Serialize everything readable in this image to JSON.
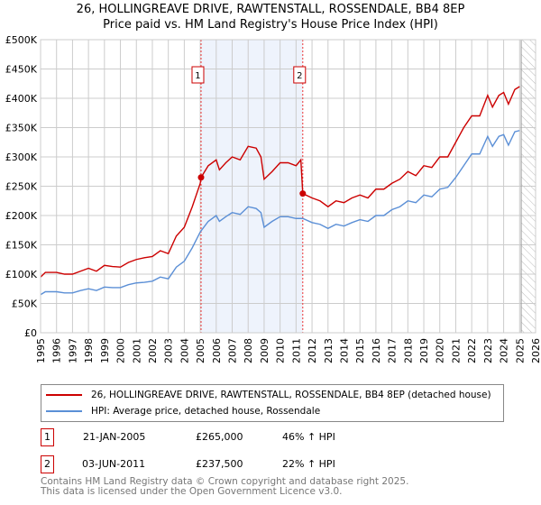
{
  "chart_data": {
    "type": "line",
    "title": "26, HOLLINGREAVE DRIVE, RAWTENSTALL, ROSSENDALE, BB4 8EP",
    "subtitle": "Price paid vs. HM Land Registry's House Price Index (HPI)",
    "xlim": [
      1995,
      2026
    ],
    "ylim": [
      0,
      500000
    ],
    "x_ticks": [
      "1995",
      "1996",
      "1997",
      "1998",
      "1999",
      "2000",
      "2001",
      "2002",
      "2003",
      "2004",
      "2005",
      "2006",
      "2007",
      "2008",
      "2009",
      "2010",
      "2011",
      "2012",
      "2013",
      "2014",
      "2015",
      "2016",
      "2017",
      "2018",
      "2019",
      "2020",
      "2021",
      "2022",
      "2023",
      "2024",
      "2025",
      "2026"
    ],
    "y_ticks": [
      {
        "v": 0,
        "label": "£0"
      },
      {
        "v": 50000,
        "label": "£50K"
      },
      {
        "v": 100000,
        "label": "£100K"
      },
      {
        "v": 150000,
        "label": "£150K"
      },
      {
        "v": 200000,
        "label": "£200K"
      },
      {
        "v": 250000,
        "label": "£250K"
      },
      {
        "v": 300000,
        "label": "£300K"
      },
      {
        "v": 350000,
        "label": "£350K"
      },
      {
        "v": 400000,
        "label": "£400K"
      },
      {
        "v": 450000,
        "label": "£450K"
      },
      {
        "v": 500000,
        "label": "£500K"
      }
    ],
    "grid": true,
    "shaded_range": [
      2005.05,
      2011.42
    ],
    "forecast_hatch_from": 2025.1,
    "colors": {
      "price": "#cc0000",
      "hpi": "#5b8fd6",
      "shade": "#eef3fc"
    },
    "series": [
      {
        "name": "26, HOLLINGREAVE DRIVE, RAWTENSTALL, ROSSENDALE, BB4 8EP (detached house)",
        "color": "#cc0000",
        "x": [
          1995,
          1995.3,
          1996,
          1996.5,
          1997,
          1997.5,
          1998,
          1998.5,
          1999,
          1999.5,
          2000,
          2000.5,
          2001,
          2001.5,
          2002,
          2002.5,
          2003,
          2003.5,
          2004,
          2004.5,
          2005,
          2005.05,
          2005.5,
          2006,
          2006.2,
          2006.6,
          2007,
          2007.5,
          2008,
          2008.5,
          2008.8,
          2009,
          2009.5,
          2010,
          2010.5,
          2011,
          2011.3,
          2011.42,
          2012,
          2012.5,
          2013,
          2013.5,
          2014,
          2014.5,
          2015,
          2015.5,
          2016,
          2016.5,
          2017,
          2017.5,
          2018,
          2018.5,
          2019,
          2019.5,
          2020,
          2020.5,
          2021,
          2021.5,
          2022,
          2022.5,
          2023,
          2023.3,
          2023.7,
          2024,
          2024.3,
          2024.7,
          2025
        ],
        "y": [
          95000,
          103000,
          103000,
          100000,
          100000,
          105000,
          110000,
          105000,
          115000,
          113000,
          112000,
          120000,
          125000,
          128000,
          130000,
          140000,
          135000,
          165000,
          180000,
          215000,
          255000,
          265000,
          285000,
          295000,
          278000,
          290000,
          300000,
          295000,
          318000,
          315000,
          300000,
          262000,
          275000,
          290000,
          290000,
          285000,
          295000,
          237500,
          230000,
          225000,
          215000,
          225000,
          222000,
          230000,
          235000,
          230000,
          245000,
          245000,
          255000,
          262000,
          275000,
          268000,
          285000,
          282000,
          300000,
          300000,
          325000,
          350000,
          370000,
          370000,
          405000,
          385000,
          405000,
          410000,
          390000,
          415000,
          420000
        ]
      },
      {
        "name": "HPI: Average price, detached house, Rossendale",
        "color": "#5b8fd6",
        "x": [
          1995,
          1995.3,
          1996,
          1996.5,
          1997,
          1997.5,
          1998,
          1998.5,
          1999,
          1999.5,
          2000,
          2000.5,
          2001,
          2001.5,
          2002,
          2002.5,
          2003,
          2003.5,
          2004,
          2004.5,
          2005,
          2005.5,
          2006,
          2006.2,
          2006.6,
          2007,
          2007.5,
          2008,
          2008.5,
          2008.8,
          2009,
          2009.5,
          2010,
          2010.5,
          2011,
          2011.42,
          2012,
          2012.5,
          2013,
          2013.5,
          2014,
          2014.5,
          2015,
          2015.5,
          2016,
          2016.5,
          2017,
          2017.5,
          2018,
          2018.5,
          2019,
          2019.5,
          2020,
          2020.5,
          2021,
          2021.5,
          2022,
          2022.5,
          2023,
          2023.3,
          2023.7,
          2024,
          2024.3,
          2024.7,
          2025
        ],
        "y": [
          65000,
          70000,
          70000,
          68000,
          68000,
          72000,
          75000,
          72000,
          78000,
          77000,
          77000,
          82000,
          85000,
          86000,
          88000,
          95000,
          92000,
          112000,
          122000,
          145000,
          172000,
          190000,
          200000,
          190000,
          198000,
          205000,
          202000,
          215000,
          212000,
          205000,
          180000,
          190000,
          198000,
          198000,
          195000,
          195000,
          188000,
          185000,
          178000,
          185000,
          182000,
          188000,
          193000,
          190000,
          200000,
          200000,
          210000,
          215000,
          225000,
          222000,
          235000,
          232000,
          245000,
          248000,
          265000,
          285000,
          305000,
          305000,
          335000,
          318000,
          335000,
          338000,
          320000,
          343000,
          345000
        ]
      }
    ],
    "sales": [
      {
        "label": "1",
        "x": 2005.05,
        "y": 265000
      },
      {
        "label": "2",
        "x": 2011.42,
        "y": 237500
      }
    ]
  },
  "legend": {
    "price": "26, HOLLINGREAVE DRIVE, RAWTENSTALL, ROSSENDALE, BB4 8EP (detached house)",
    "hpi": "HPI: Average price, detached house, Rossendale"
  },
  "transactions": [
    {
      "num": "1",
      "date": "21-JAN-2005",
      "price": "£265,000",
      "hpi": "46% ↑ HPI"
    },
    {
      "num": "2",
      "date": "03-JUN-2011",
      "price": "£237,500",
      "hpi": "22% ↑ HPI"
    }
  ],
  "footer": {
    "line1": "Contains HM Land Registry data © Crown copyright and database right 2025.",
    "line2": "This data is licensed under the Open Government Licence v3.0."
  }
}
